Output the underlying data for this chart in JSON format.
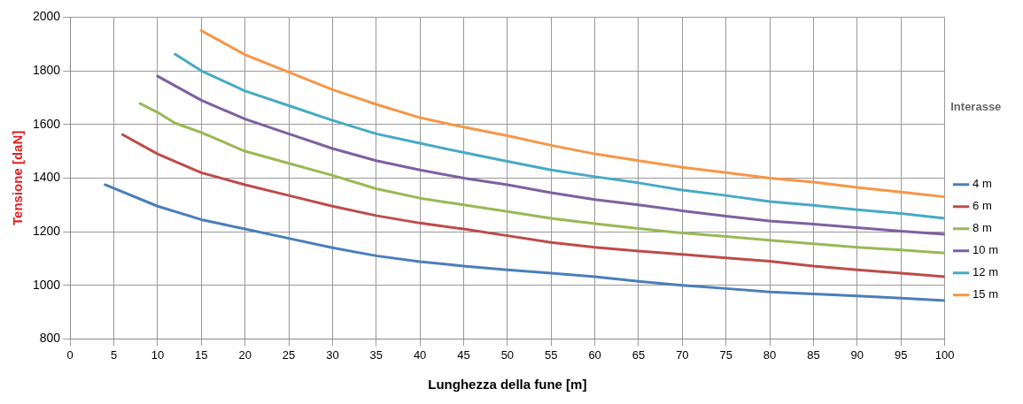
{
  "chart_data": {
    "type": "line",
    "xlabel": "Lunghezza della fune [m]",
    "ylabel": "Tensione [daN]",
    "legend_title": "Interasse",
    "legend": "right",
    "grid": true,
    "marker": "none",
    "line_style": "solid",
    "xlim": [
      0,
      100
    ],
    "xticks": [
      0,
      5,
      10,
      15,
      20,
      25,
      30,
      35,
      40,
      45,
      50,
      55,
      60,
      65,
      70,
      75,
      80,
      85,
      90,
      95,
      100
    ],
    "ylim": [
      800,
      2000
    ],
    "yticks": [
      800,
      1000,
      1200,
      1400,
      1600,
      1800,
      2000
    ],
    "series": [
      {
        "name": "4 m",
        "color": "#4a7ebb",
        "x": [
          4,
          10,
          15,
          20,
          25,
          30,
          35,
          40,
          45,
          50,
          55,
          60,
          65,
          70,
          75,
          80,
          85,
          90,
          95,
          100
        ],
        "values": [
          1375,
          1295,
          1245,
          1210,
          1175,
          1140,
          1110,
          1088,
          1072,
          1058,
          1045,
          1032,
          1015,
          1000,
          988,
          975,
          968,
          960,
          952,
          943
        ]
      },
      {
        "name": "6 m",
        "color": "#be4b48",
        "x": [
          6,
          10,
          15,
          20,
          25,
          30,
          35,
          40,
          45,
          50,
          55,
          60,
          65,
          70,
          75,
          80,
          85,
          90,
          95,
          100
        ],
        "values": [
          1562,
          1490,
          1420,
          1375,
          1335,
          1295,
          1260,
          1232,
          1210,
          1185,
          1160,
          1142,
          1128,
          1115,
          1102,
          1090,
          1072,
          1058,
          1045,
          1032
        ]
      },
      {
        "name": "8 m",
        "color": "#98b954",
        "x": [
          8,
          10,
          12,
          15,
          20,
          25,
          30,
          35,
          40,
          45,
          50,
          55,
          60,
          65,
          70,
          75,
          80,
          85,
          90,
          95,
          100
        ],
        "values": [
          1678,
          1645,
          1605,
          1570,
          1500,
          1455,
          1410,
          1360,
          1325,
          1300,
          1275,
          1250,
          1230,
          1212,
          1195,
          1182,
          1168,
          1155,
          1142,
          1132,
          1120
        ]
      },
      {
        "name": "10 m",
        "color": "#7d60a0",
        "x": [
          10,
          15,
          20,
          25,
          30,
          35,
          40,
          45,
          50,
          55,
          60,
          65,
          70,
          75,
          80,
          85,
          90,
          95,
          100
        ],
        "values": [
          1780,
          1690,
          1620,
          1565,
          1510,
          1465,
          1430,
          1400,
          1375,
          1345,
          1320,
          1300,
          1278,
          1258,
          1240,
          1228,
          1215,
          1202,
          1190
        ]
      },
      {
        "name": "12 m",
        "color": "#46aac5",
        "x": [
          12,
          15,
          20,
          25,
          30,
          35,
          40,
          45,
          50,
          55,
          60,
          65,
          70,
          75,
          80,
          85,
          90,
          95,
          100
        ],
        "values": [
          1862,
          1800,
          1725,
          1670,
          1615,
          1565,
          1530,
          1495,
          1462,
          1430,
          1405,
          1382,
          1355,
          1335,
          1312,
          1298,
          1282,
          1268,
          1250
        ]
      },
      {
        "name": "15 m",
        "color": "#f79646",
        "x": [
          15,
          20,
          25,
          30,
          35,
          40,
          45,
          50,
          55,
          60,
          65,
          70,
          75,
          80,
          85,
          90,
          95,
          100
        ],
        "values": [
          1950,
          1860,
          1795,
          1730,
          1675,
          1625,
          1590,
          1558,
          1522,
          1490,
          1465,
          1440,
          1420,
          1400,
          1385,
          1365,
          1348,
          1330
        ]
      }
    ]
  }
}
